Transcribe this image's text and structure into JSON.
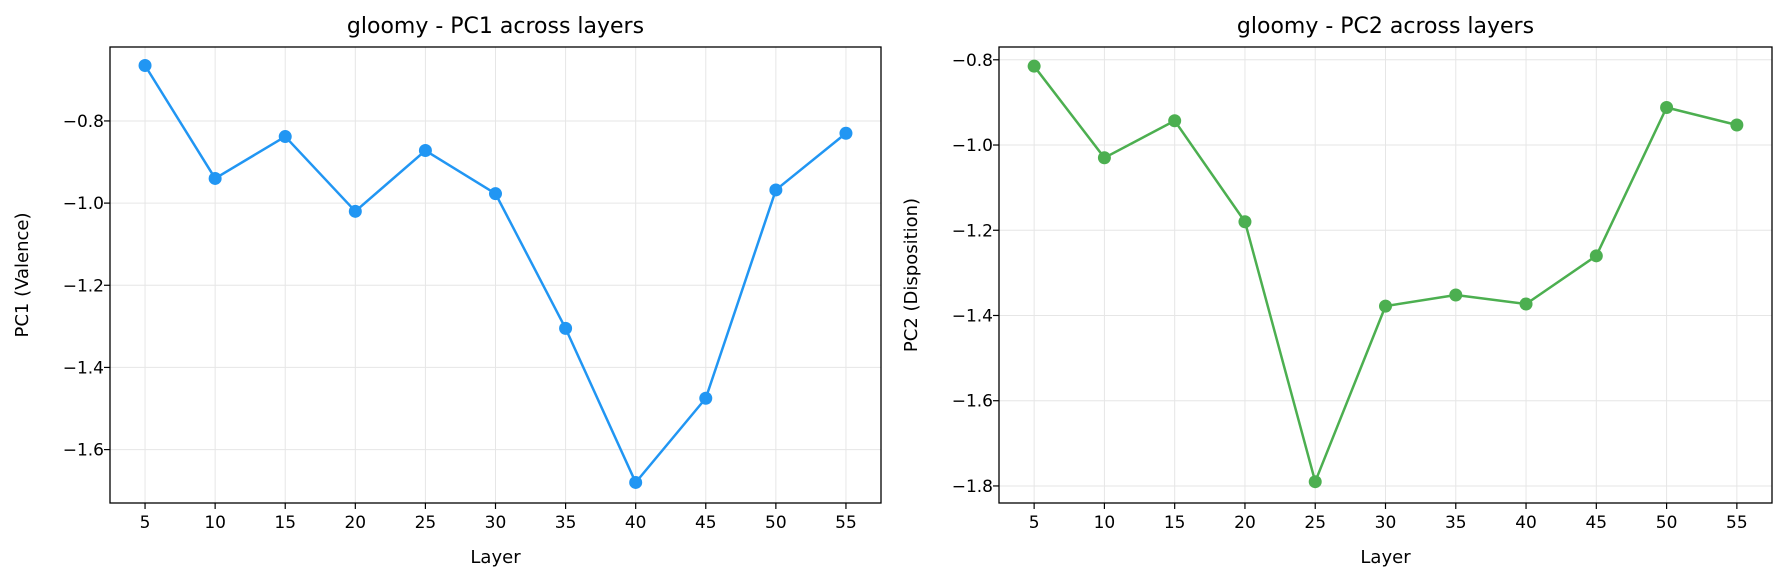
{
  "chart_data": [
    {
      "type": "line",
      "title": "gloomy - PC1 across layers",
      "xlabel": "Layer",
      "ylabel": "PC1 (Valence)",
      "x": [
        5,
        10,
        15,
        20,
        25,
        30,
        35,
        40,
        45,
        50,
        55
      ],
      "xticks": [
        "5",
        "10",
        "15",
        "20",
        "25",
        "30",
        "35",
        "40",
        "45",
        "50",
        "55"
      ],
      "yticks": [
        -0.8,
        -1.0,
        -1.2,
        -1.4,
        -1.6
      ],
      "ytick_labels": [
        "−0.8",
        "−1.0",
        "−1.2",
        "−1.4",
        "−1.6"
      ],
      "xlim": [
        2.5,
        57.5
      ],
      "ylim": [
        -1.73,
        -0.62
      ],
      "grid": true,
      "series": [
        {
          "values": [
            -0.665,
            -0.94,
            -0.838,
            -1.02,
            -0.872,
            -0.977,
            -1.305,
            -1.68,
            -1.475,
            -0.968,
            -0.83
          ],
          "color": "#2196F3"
        }
      ]
    },
    {
      "type": "line",
      "title": "gloomy - PC2 across layers",
      "xlabel": "Layer",
      "ylabel": "PC2 (Disposition)",
      "x": [
        5,
        10,
        15,
        20,
        25,
        30,
        35,
        40,
        45,
        50,
        55
      ],
      "xticks": [
        "5",
        "10",
        "15",
        "20",
        "25",
        "30",
        "35",
        "40",
        "45",
        "50",
        "55"
      ],
      "yticks": [
        -0.8,
        -1.0,
        -1.2,
        -1.4,
        -1.6,
        -1.8
      ],
      "ytick_labels": [
        "−0.8",
        "−1.0",
        "−1.2",
        "−1.4",
        "−1.6",
        "−1.8"
      ],
      "xlim": [
        2.5,
        57.5
      ],
      "ylim": [
        -1.84,
        -0.77
      ],
      "grid": true,
      "series": [
        {
          "values": [
            -0.815,
            -1.03,
            -0.943,
            -1.18,
            -1.79,
            -1.378,
            -1.352,
            -1.373,
            -1.26,
            -0.912,
            -0.953
          ],
          "color": "#4CAF50"
        }
      ]
    }
  ]
}
